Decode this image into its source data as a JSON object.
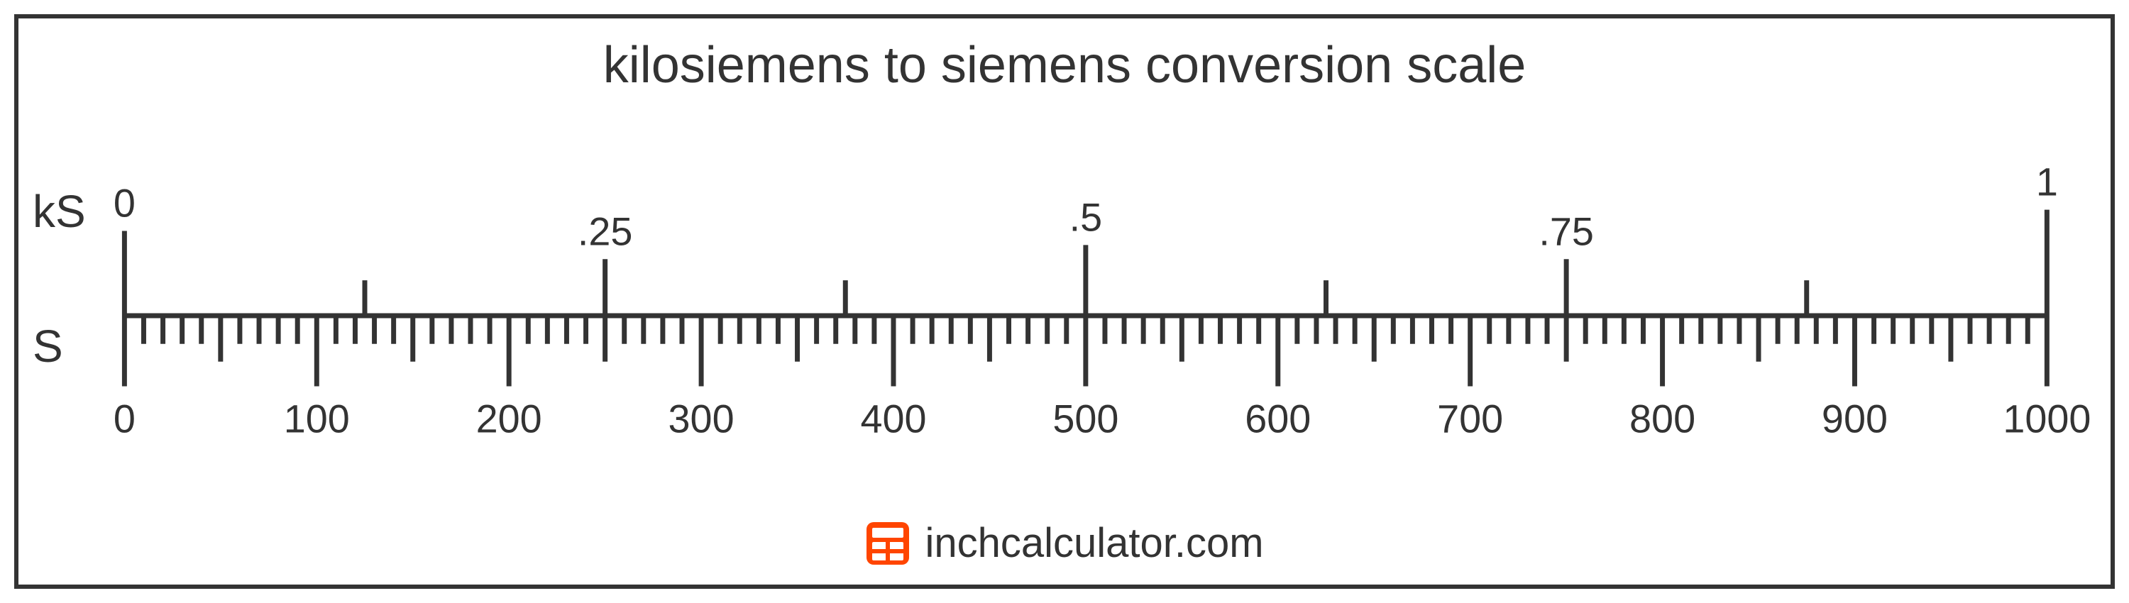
{
  "title": "kilosiemens to siemens conversion scale",
  "top_unit_label": "kS",
  "bottom_unit_label": "S",
  "branding_text": "inchcalculator.com",
  "scale": {
    "type": "ruler",
    "axis_line_color": "#333333",
    "tick_color": "#333333",
    "text_color": "#333333",
    "line_width": 7,
    "ruler_x_start": 150,
    "ruler_x_end": 2870,
    "ruler_y_center": 280,
    "top": {
      "min": 0,
      "max": 1,
      "major_ticks": [
        {
          "value": 0,
          "label": "0",
          "height": 120
        },
        {
          "value": 0.25,
          "label": ".25",
          "height": 80
        },
        {
          "value": 0.5,
          "label": ".5",
          "height": 100
        },
        {
          "value": 0.75,
          "label": ".75",
          "height": 80
        },
        {
          "value": 1,
          "label": "1",
          "height": 150
        }
      ],
      "minor_ticks": [
        0.125,
        0.375,
        0.625,
        0.875
      ],
      "minor_tick_height": 50,
      "label_fontsize": 56,
      "label_offset": 20
    },
    "bottom": {
      "min": 0,
      "max": 1000,
      "major_ticks": [
        {
          "value": 0,
          "label": "0"
        },
        {
          "value": 100,
          "label": "100"
        },
        {
          "value": 200,
          "label": "200"
        },
        {
          "value": 300,
          "label": "300"
        },
        {
          "value": 400,
          "label": "400"
        },
        {
          "value": 500,
          "label": "500"
        },
        {
          "value": 600,
          "label": "600"
        },
        {
          "value": 700,
          "label": "700"
        },
        {
          "value": 800,
          "label": "800"
        },
        {
          "value": 900,
          "label": "900"
        },
        {
          "value": 1000,
          "label": "1000"
        }
      ],
      "major_tick_height": 100,
      "mid_tick_height": 65,
      "minor_tick_height": 40,
      "minor_step": 10,
      "label_fontsize": 56,
      "label_offset": 65
    }
  },
  "logo": {
    "bg_color": "#ff4500",
    "grid_color": "#ffffff"
  }
}
